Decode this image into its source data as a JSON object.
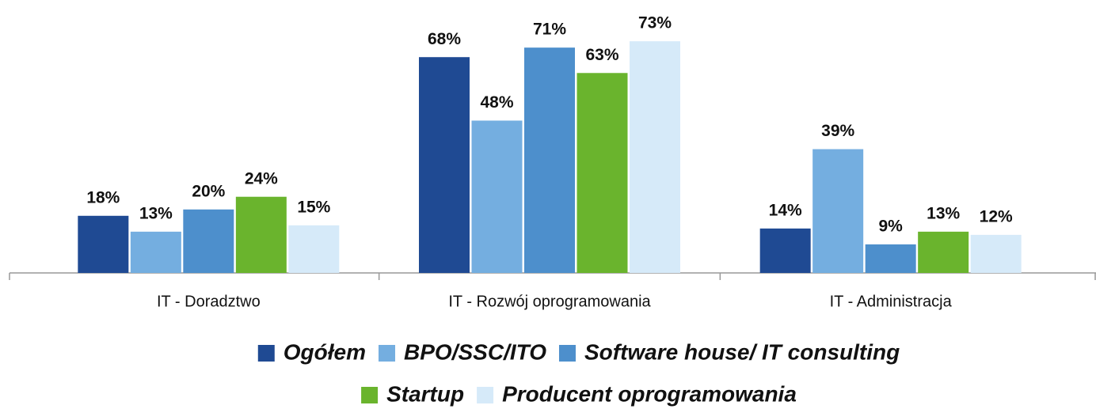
{
  "chart_data": {
    "type": "bar",
    "categories": [
      "IT - Doradztwo",
      "IT - Rozwój oprogramowania",
      "IT - Administracja"
    ],
    "series": [
      {
        "name": "Ogółem",
        "color": "#1f4a93",
        "values": [
          18,
          68,
          14
        ],
        "value_labels": [
          "18%",
          "68%",
          "14%"
        ]
      },
      {
        "name": "BPO/SSC/ITO",
        "color": "#74aee0",
        "values": [
          13,
          48,
          39
        ],
        "value_labels": [
          "13%",
          "48%",
          "39%"
        ]
      },
      {
        "name": "Software house/ IT consulting",
        "color": "#4d8fcc",
        "values": [
          20,
          71,
          9
        ],
        "value_labels": [
          "20%",
          "71%",
          "9%"
        ]
      },
      {
        "name": "Startup",
        "color": "#6ab42d",
        "values": [
          24,
          63,
          13
        ],
        "value_labels": [
          "24%",
          "63%",
          "13%"
        ]
      },
      {
        "name": "Producent oprogramowania",
        "color": "#d6eaf9",
        "values": [
          15,
          73,
          12
        ],
        "value_labels": [
          "15%",
          "73%",
          "12%"
        ]
      }
    ],
    "ylim": [
      0,
      86
    ],
    "grid": false,
    "legend": "bottom"
  }
}
